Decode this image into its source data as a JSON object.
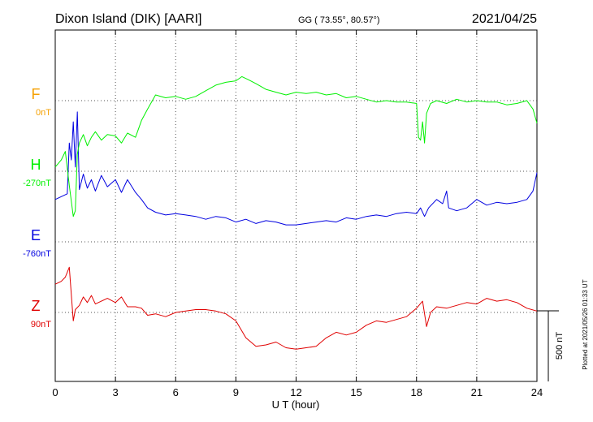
{
  "header": {
    "station": "Dixon Island (DIK)  [AARI]",
    "coords": "GG ( 73.55°,  80.57°)",
    "date": "2021/04/25"
  },
  "footer": {
    "plotted": "Plotted at 2021/05/26 01:33 UT"
  },
  "chart_data": {
    "type": "line",
    "xlabel": "U T (hour)",
    "xlim": [
      0,
      24
    ],
    "xticks": [
      "0",
      "3",
      "6",
      "9",
      "12",
      "15",
      "18",
      "21",
      "24"
    ],
    "scale_bar": {
      "label": "500 nT",
      "value": 500
    },
    "grid": true,
    "series": [
      {
        "name": "F",
        "baseline_label": "0nT",
        "color": "#f5a000",
        "baseline_offset": 0,
        "points": []
      },
      {
        "name": "H",
        "baseline_label": "-270nT",
        "color": "#00f000",
        "baseline_offset": -500,
        "points": [
          [
            0,
            -470
          ],
          [
            0.3,
            -420
          ],
          [
            0.5,
            -360
          ],
          [
            0.7,
            -600
          ],
          [
            0.9,
            -820
          ],
          [
            1.0,
            -780
          ],
          [
            1.1,
            -380
          ],
          [
            1.2,
            -300
          ],
          [
            1.4,
            -240
          ],
          [
            1.6,
            -320
          ],
          [
            1.8,
            -260
          ],
          [
            2.0,
            -220
          ],
          [
            2.3,
            -280
          ],
          [
            2.6,
            -240
          ],
          [
            3.0,
            -250
          ],
          [
            3.3,
            -300
          ],
          [
            3.6,
            -230
          ],
          [
            4.0,
            -260
          ],
          [
            4.3,
            -140
          ],
          [
            4.6,
            -60
          ],
          [
            5.0,
            40
          ],
          [
            5.5,
            20
          ],
          [
            6.0,
            30
          ],
          [
            6.5,
            10
          ],
          [
            7.0,
            30
          ],
          [
            7.5,
            70
          ],
          [
            8.0,
            110
          ],
          [
            8.5,
            130
          ],
          [
            9.0,
            140
          ],
          [
            9.3,
            170
          ],
          [
            9.6,
            150
          ],
          [
            10.0,
            120
          ],
          [
            10.5,
            80
          ],
          [
            11.0,
            60
          ],
          [
            11.5,
            40
          ],
          [
            12.0,
            60
          ],
          [
            12.5,
            50
          ],
          [
            13.0,
            60
          ],
          [
            13.5,
            40
          ],
          [
            14.0,
            50
          ],
          [
            14.5,
            20
          ],
          [
            15.0,
            30
          ],
          [
            15.5,
            10
          ],
          [
            16.0,
            -10
          ],
          [
            16.5,
            0
          ],
          [
            17.0,
            -10
          ],
          [
            17.5,
            -10
          ],
          [
            18.0,
            -20
          ],
          [
            18.1,
            -260
          ],
          [
            18.2,
            -280
          ],
          [
            18.3,
            -150
          ],
          [
            18.4,
            -300
          ],
          [
            18.5,
            -90
          ],
          [
            18.7,
            -20
          ],
          [
            19.0,
            0
          ],
          [
            19.5,
            -20
          ],
          [
            20.0,
            10
          ],
          [
            20.5,
            -10
          ],
          [
            21.0,
            0
          ],
          [
            21.5,
            -10
          ],
          [
            22.0,
            -10
          ],
          [
            22.5,
            -30
          ],
          [
            23.0,
            -20
          ],
          [
            23.5,
            0
          ],
          [
            23.8,
            -60
          ],
          [
            24.0,
            -160
          ]
        ]
      },
      {
        "name": "E",
        "baseline_label": "-760nT",
        "color": "#0000e0",
        "baseline_offset": -1000,
        "points": [
          [
            0,
            -700
          ],
          [
            0.3,
            -680
          ],
          [
            0.6,
            -660
          ],
          [
            0.7,
            -300
          ],
          [
            0.8,
            -420
          ],
          [
            0.9,
            -150
          ],
          [
            1.0,
            -470
          ],
          [
            1.1,
            -80
          ],
          [
            1.2,
            -630
          ],
          [
            1.4,
            -520
          ],
          [
            1.6,
            -620
          ],
          [
            1.8,
            -560
          ],
          [
            2.0,
            -640
          ],
          [
            2.3,
            -530
          ],
          [
            2.6,
            -610
          ],
          [
            3.0,
            -560
          ],
          [
            3.3,
            -650
          ],
          [
            3.6,
            -560
          ],
          [
            4.0,
            -650
          ],
          [
            4.3,
            -700
          ],
          [
            4.6,
            -760
          ],
          [
            5.0,
            -790
          ],
          [
            5.5,
            -810
          ],
          [
            6.0,
            -800
          ],
          [
            6.5,
            -810
          ],
          [
            7.0,
            -820
          ],
          [
            7.5,
            -840
          ],
          [
            8.0,
            -820
          ],
          [
            8.5,
            -830
          ],
          [
            9.0,
            -860
          ],
          [
            9.5,
            -840
          ],
          [
            10.0,
            -870
          ],
          [
            10.5,
            -850
          ],
          [
            11.0,
            -860
          ],
          [
            11.5,
            -880
          ],
          [
            12.0,
            -880
          ],
          [
            12.5,
            -870
          ],
          [
            13.0,
            -860
          ],
          [
            13.5,
            -850
          ],
          [
            14.0,
            -860
          ],
          [
            14.5,
            -830
          ],
          [
            15.0,
            -840
          ],
          [
            15.5,
            -820
          ],
          [
            16.0,
            -810
          ],
          [
            16.5,
            -820
          ],
          [
            17.0,
            -800
          ],
          [
            17.5,
            -790
          ],
          [
            18.0,
            -800
          ],
          [
            18.2,
            -760
          ],
          [
            18.4,
            -820
          ],
          [
            18.6,
            -760
          ],
          [
            19.0,
            -700
          ],
          [
            19.3,
            -730
          ],
          [
            19.5,
            -640
          ],
          [
            19.6,
            -760
          ],
          [
            20.0,
            -780
          ],
          [
            20.5,
            -760
          ],
          [
            21.0,
            -700
          ],
          [
            21.5,
            -740
          ],
          [
            22.0,
            -720
          ],
          [
            22.5,
            -730
          ],
          [
            23.0,
            -720
          ],
          [
            23.5,
            -700
          ],
          [
            23.8,
            -640
          ],
          [
            24.0,
            -510
          ]
        ]
      },
      {
        "name": "Z",
        "baseline_label": "90nT",
        "color": "#e00000",
        "baseline_offset": -1500,
        "points": [
          [
            0,
            -1300
          ],
          [
            0.3,
            -1280
          ],
          [
            0.5,
            -1250
          ],
          [
            0.7,
            -1180
          ],
          [
            0.9,
            -1560
          ],
          [
            1.0,
            -1480
          ],
          [
            1.2,
            -1450
          ],
          [
            1.4,
            -1390
          ],
          [
            1.6,
            -1430
          ],
          [
            1.8,
            -1380
          ],
          [
            2.0,
            -1440
          ],
          [
            2.3,
            -1420
          ],
          [
            2.6,
            -1400
          ],
          [
            3.0,
            -1430
          ],
          [
            3.3,
            -1390
          ],
          [
            3.6,
            -1460
          ],
          [
            4.0,
            -1460
          ],
          [
            4.3,
            -1470
          ],
          [
            4.6,
            -1520
          ],
          [
            5.0,
            -1510
          ],
          [
            5.5,
            -1530
          ],
          [
            6.0,
            -1500
          ],
          [
            6.5,
            -1490
          ],
          [
            7.0,
            -1480
          ],
          [
            7.5,
            -1480
          ],
          [
            8.0,
            -1490
          ],
          [
            8.5,
            -1510
          ],
          [
            9.0,
            -1560
          ],
          [
            9.5,
            -1680
          ],
          [
            10.0,
            -1740
          ],
          [
            10.5,
            -1730
          ],
          [
            11.0,
            -1710
          ],
          [
            11.5,
            -1750
          ],
          [
            12.0,
            -1760
          ],
          [
            12.5,
            -1750
          ],
          [
            13.0,
            -1740
          ],
          [
            13.5,
            -1680
          ],
          [
            14.0,
            -1640
          ],
          [
            14.5,
            -1660
          ],
          [
            15.0,
            -1640
          ],
          [
            15.5,
            -1590
          ],
          [
            16.0,
            -1560
          ],
          [
            16.5,
            -1570
          ],
          [
            17.0,
            -1550
          ],
          [
            17.5,
            -1530
          ],
          [
            18.0,
            -1470
          ],
          [
            18.3,
            -1420
          ],
          [
            18.5,
            -1600
          ],
          [
            18.7,
            -1500
          ],
          [
            19.0,
            -1460
          ],
          [
            19.5,
            -1470
          ],
          [
            20.0,
            -1450
          ],
          [
            20.5,
            -1430
          ],
          [
            21.0,
            -1440
          ],
          [
            21.5,
            -1400
          ],
          [
            22.0,
            -1420
          ],
          [
            22.5,
            -1410
          ],
          [
            23.0,
            -1430
          ],
          [
            23.5,
            -1470
          ],
          [
            24.0,
            -1490
          ]
        ]
      }
    ]
  }
}
